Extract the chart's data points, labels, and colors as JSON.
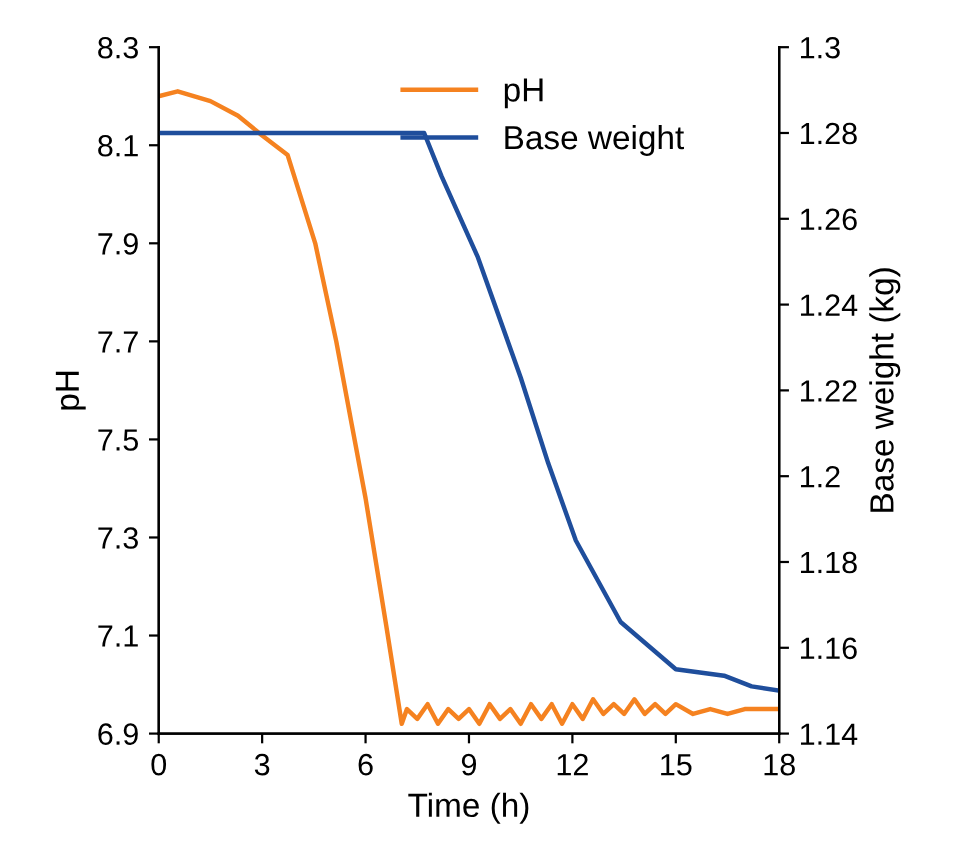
{
  "chart_data": {
    "type": "line",
    "xlabel": "Time (h)",
    "ylabel": "pH",
    "y2label": "Base weight (kg)",
    "series": [
      {
        "name": "pH",
        "color": "#f58220",
        "x": [
          0,
          0.55,
          1.5,
          2.3,
          3,
          3.74,
          4.54,
          5.15,
          5.6,
          6.0,
          6.6,
          7.05,
          7.2,
          7.5,
          7.8,
          8.1,
          8.4,
          8.7,
          9.0,
          9.3,
          9.6,
          9.9,
          10.2,
          10.5,
          10.8,
          11.1,
          11.4,
          11.7,
          12.0,
          12.3,
          12.6,
          12.9,
          13.2,
          13.5,
          13.8,
          14.1,
          14.4,
          14.7,
          15.0,
          15.5,
          16.0,
          16.5,
          17.0,
          17.5,
          18.0
        ],
        "values": [
          8.2,
          8.21,
          8.19,
          8.16,
          8.12,
          8.08,
          7.9,
          7.7,
          7.53,
          7.38,
          7.12,
          6.92,
          6.95,
          6.93,
          6.96,
          6.92,
          6.95,
          6.93,
          6.95,
          6.92,
          6.96,
          6.93,
          6.95,
          6.92,
          6.96,
          6.93,
          6.96,
          6.92,
          6.96,
          6.93,
          6.97,
          6.94,
          6.96,
          6.94,
          6.97,
          6.94,
          6.96,
          6.94,
          6.96,
          6.94,
          6.95,
          6.94,
          6.95,
          6.95,
          6.95
        ]
      },
      {
        "name": "Base weight",
        "color": "#1f4e9c",
        "axis": "y2",
        "x": [
          0,
          7.7,
          8.2,
          9.26,
          10.5,
          11.3,
          12.1,
          13.4,
          15.0,
          16.4,
          17.2,
          18.0
        ],
        "values": [
          1.28,
          1.28,
          1.27,
          1.251,
          1.223,
          1.203,
          1.185,
          1.166,
          1.155,
          1.1535,
          1.151,
          1.15
        ]
      }
    ],
    "xlim": [
      0,
      18
    ],
    "xticks": [
      0,
      3,
      6,
      9,
      12,
      15,
      18
    ],
    "ylim": [
      6.9,
      8.3
    ],
    "yticks": [
      6.9,
      7.1,
      7.3,
      7.5,
      7.7,
      7.9,
      8.1,
      8.3
    ],
    "y2lim": [
      1.14,
      1.3
    ],
    "y2ticks": [
      1.14,
      1.16,
      1.18,
      {
        "value": 1.2,
        "label": "1.2"
      },
      1.22,
      1.24,
      1.26,
      1.28,
      {
        "value": 1.3,
        "label": "1.3"
      }
    ],
    "legend": "top",
    "grid": false,
    "marker": "none",
    "line_style": "solid"
  }
}
